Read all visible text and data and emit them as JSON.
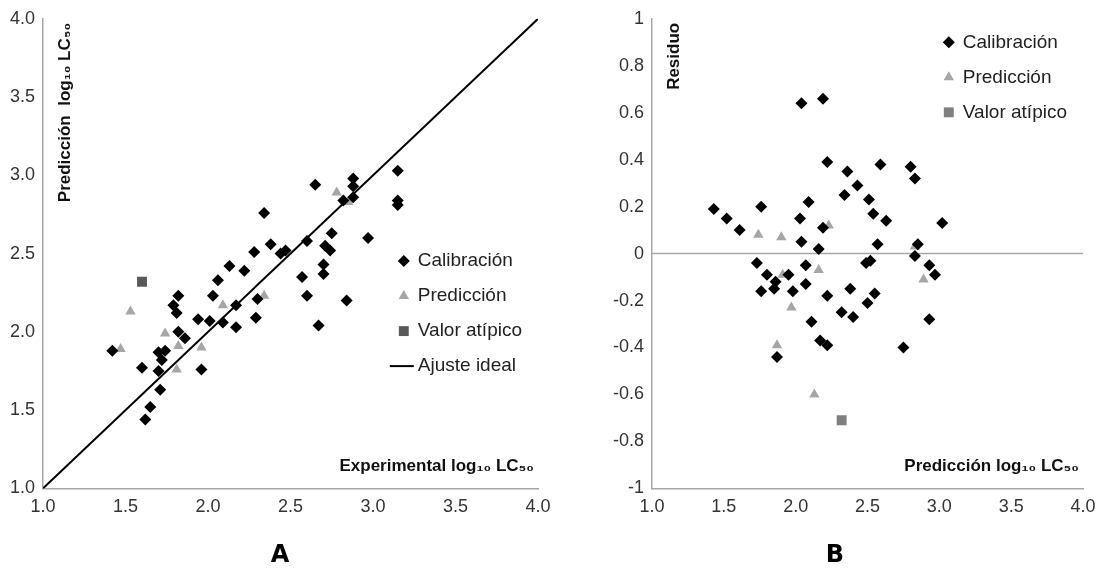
{
  "chart_data": [
    {
      "type": "scatter",
      "title": "A",
      "xlabel": "Experimental log₁₀ LC₅₀",
      "ylabel": "Predicción  log₁₀ LC₅₀",
      "legend": "right",
      "xlim": [
        1,
        4
      ],
      "ylim": [
        1,
        4
      ],
      "xticks": [
        {
          "value": 1,
          "label": "1.0"
        },
        {
          "value": 1.5,
          "label": "1.5"
        },
        {
          "value": 2,
          "label": "2.0"
        },
        {
          "value": 2.5,
          "label": "2.5"
        },
        {
          "value": 3,
          "label": "3.0"
        },
        {
          "value": 3.5,
          "label": "3.5"
        },
        {
          "value": 4,
          "label": "4.0"
        }
      ],
      "yticks": [
        {
          "value": 1,
          "label": "1.0"
        },
        {
          "value": 1.5,
          "label": "1.5"
        },
        {
          "value": 2,
          "label": "2.0"
        },
        {
          "value": 2.5,
          "label": "2.5"
        },
        {
          "value": 3,
          "label": "3.0"
        },
        {
          "value": 3.5,
          "label": "3.5"
        },
        {
          "value": 4,
          "label": "4.0"
        }
      ],
      "series": [
        {
          "name": "Calibración",
          "color": "#000000",
          "marker": "diamond",
          "x": [
            1.42,
            1.6,
            1.62,
            1.65,
            1.71,
            1.7,
            1.7,
            1.72,
            1.74,
            1.79,
            1.81,
            1.82,
            1.82,
            1.86,
            1.96,
            1.94,
            2.01,
            2.03,
            2.06,
            2.09,
            2.13,
            2.17,
            2.17,
            2.22,
            2.28,
            2.29,
            2.3,
            2.34,
            2.38,
            2.44,
            2.47,
            2.57,
            2.6,
            2.6,
            2.65,
            2.67,
            2.7,
            2.7,
            2.71,
            2.74,
            2.75,
            2.84,
            2.82,
            2.88,
            2.88,
            2.88,
            2.97,
            3.15,
            3.15,
            3.15
          ],
          "values": [
            1.88,
            1.77,
            1.44,
            1.52,
            1.63,
            1.75,
            1.87,
            1.82,
            1.88,
            2.17,
            2.12,
            2.23,
            2.0,
            1.96,
            1.76,
            2.08,
            2.07,
            2.23,
            2.33,
            2.06,
            2.42,
            2.03,
            2.17,
            2.39,
            2.51,
            2.09,
            2.21,
            2.76,
            2.56,
            2.5,
            2.52,
            2.35,
            2.23,
            2.58,
            2.94,
            2.04,
            2.37,
            2.43,
            2.55,
            2.52,
            2.63,
            2.2,
            2.84,
            2.98,
            2.93,
            2.86,
            2.6,
            3.03,
            2.84,
            2.81
          ]
        },
        {
          "name": "Predicción",
          "color": "#a6a6a6",
          "marker": "triangle",
          "x": [
            1.47,
            1.53,
            1.74,
            1.82,
            1.81,
            1.96,
            2.09,
            2.34,
            2.78,
            2.85
          ],
          "values": [
            1.89,
            2.13,
            1.99,
            1.91,
            1.76,
            1.9,
            2.17,
            2.23,
            2.89,
            2.83
          ]
        },
        {
          "name": "Valor atípico",
          "color": "#595959",
          "marker": "square",
          "x": [
            1.6
          ],
          "values": [
            2.32
          ]
        },
        {
          "name": "Ajuste ideal",
          "type": "line",
          "color": "#000000",
          "marker": "none",
          "x": [
            1,
            4
          ],
          "values": [
            1,
            4
          ]
        }
      ]
    },
    {
      "type": "scatter",
      "title": "B",
      "xlabel": "Predicción log₁₀ LC₅₀",
      "ylabel": "Residuo",
      "legend": "top right",
      "xlim": [
        1,
        4
      ],
      "ylim": [
        -1,
        1
      ],
      "xticks": [
        {
          "value": 1,
          "label": "1.0"
        },
        {
          "value": 1.5,
          "label": "1.5"
        },
        {
          "value": 2,
          "label": "2.0"
        },
        {
          "value": 2.5,
          "label": "2.5"
        },
        {
          "value": 3,
          "label": "3.0"
        },
        {
          "value": 3.5,
          "label": "3.5"
        },
        {
          "value": 4,
          "label": "4.0"
        }
      ],
      "yticks": [
        -1,
        -0.8,
        -0.6,
        -0.4,
        -0.2,
        0,
        0.2,
        0.4,
        0.6,
        0.8,
        1
      ],
      "ref_lines": [
        {
          "axis": "y",
          "value": 0,
          "color": "#a6a6a6"
        }
      ],
      "series": [
        {
          "name": "Calibración",
          "color": "#000000",
          "marker": "diamond",
          "x": [
            1.43,
            1.52,
            1.61,
            1.76,
            1.73,
            1.8,
            1.86,
            1.76,
            1.85,
            1.87,
            1.95,
            1.98,
            2.04,
            2.03,
            2.04,
            2.07,
            2.07,
            2.09,
            2.11,
            2.16,
            2.17,
            2.19,
            2.22,
            2.22,
            2.22,
            2.19,
            2.36,
            2.59,
            2.43,
            2.34,
            2.51,
            2.8,
            2.83,
            2.54,
            2.63,
            3.02,
            2.57,
            2.85,
            2.49,
            2.52,
            2.83,
            2.93,
            2.97,
            2.38,
            2.55,
            2.32,
            2.4,
            2.5,
            2.93,
            2.75
          ],
          "values": [
            0.19,
            0.15,
            0.1,
            0.2,
            -0.04,
            -0.09,
            -0.12,
            -0.16,
            -0.15,
            -0.44,
            -0.09,
            -0.16,
            0.64,
            0.15,
            0.05,
            -0.05,
            -0.13,
            0.22,
            -0.29,
            0.02,
            -0.37,
            0.66,
            0.39,
            -0.18,
            -0.39,
            0.11,
            0.35,
            0.38,
            0.29,
            0.25,
            0.23,
            0.37,
            0.32,
            0.17,
            0.14,
            0.13,
            0.04,
            0.04,
            -0.04,
            -0.03,
            -0.01,
            -0.05,
            -0.09,
            -0.15,
            -0.17,
            -0.25,
            -0.27,
            -0.21,
            -0.28,
            -0.4
          ]
        },
        {
          "name": "Predicción",
          "color": "#a6a6a6",
          "marker": "triangle",
          "x": [
            1.74,
            1.9,
            1.91,
            1.97,
            1.87,
            2.13,
            2.16,
            2.23,
            2.83,
            2.89
          ],
          "values": [
            0.08,
            0.07,
            -0.09,
            -0.23,
            -0.39,
            -0.6,
            -0.07,
            0.12,
            0.03,
            -0.11
          ]
        },
        {
          "name": "Valor atípico",
          "color": "#7f7f7f",
          "marker": "square",
          "x": [
            2.32
          ],
          "values": [
            -0.71
          ]
        }
      ]
    }
  ]
}
